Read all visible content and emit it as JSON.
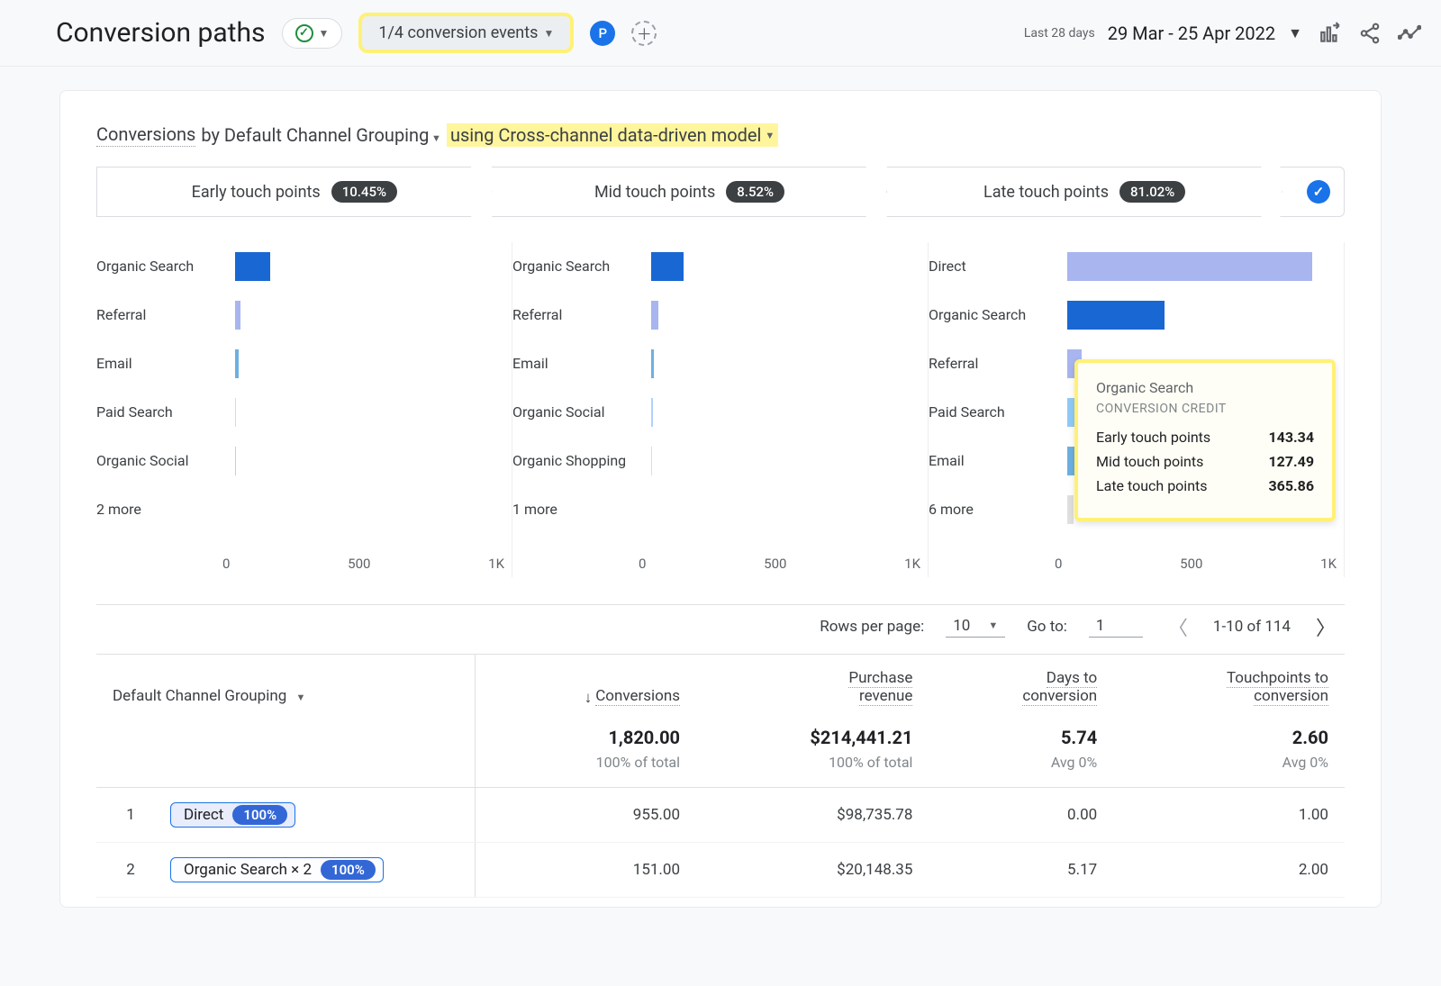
{
  "header": {
    "title": "Conversion paths",
    "events_selector": "1/4 conversion events",
    "p_label": "P",
    "date_label": "Last 28 days",
    "date_range": "29 Mar - 25 Apr 2022"
  },
  "card": {
    "title_a": "Conversions",
    "title_b": "by Default Channel Grouping",
    "title_c": "using Cross-channel data-driven model"
  },
  "funnel": {
    "steps": [
      {
        "label": "Early touch points",
        "pct": "10.45%"
      },
      {
        "label": "Mid touch points",
        "pct": "8.52%"
      },
      {
        "label": "Late touch points",
        "pct": "81.02%"
      }
    ]
  },
  "charts": {
    "axis_max": 1000,
    "ticks": [
      "0",
      "500",
      "1K"
    ],
    "cols": [
      {
        "bars": [
          {
            "label": "Organic Search",
            "value": 130,
            "color": "#1967d2"
          },
          {
            "label": "Referral",
            "value": 20,
            "color": "#a8b5ef"
          },
          {
            "label": "Email",
            "value": 12,
            "color": "#6db0e1"
          },
          {
            "label": "Paid Search",
            "value": 4,
            "color": "#cfd8ff"
          },
          {
            "label": "Organic Social",
            "value": 4,
            "color": "#b3d1ff"
          },
          {
            "label": "2 more",
            "value": 0,
            "color": "#e0e0e0"
          }
        ]
      },
      {
        "bars": [
          {
            "label": "Organic Search",
            "value": 120,
            "color": "#1967d2"
          },
          {
            "label": "Referral",
            "value": 28,
            "color": "#a8b5ef"
          },
          {
            "label": "Email",
            "value": 10,
            "color": "#6db0e1"
          },
          {
            "label": "Organic Social",
            "value": 6,
            "color": "#b3d1ff"
          },
          {
            "label": "Organic Shopping",
            "value": 4,
            "color": "#c4e3ff"
          },
          {
            "label": "1 more",
            "value": 0,
            "color": "#e0e0e0"
          }
        ]
      },
      {
        "bars": [
          {
            "label": "Direct",
            "value": 910,
            "color": "#a8b5ef"
          },
          {
            "label": "Organic Search",
            "value": 360,
            "color": "#1967d2"
          },
          {
            "label": "Referral",
            "value": 55,
            "color": "#a8b5ef"
          },
          {
            "label": "Paid Search",
            "value": 35,
            "color": "#90caf9"
          },
          {
            "label": "Email",
            "value": 30,
            "color": "#6db0e1"
          },
          {
            "label": "6 more",
            "value": 22,
            "color": "#e0e0e0"
          }
        ]
      }
    ]
  },
  "tooltip": {
    "title": "Organic Search",
    "subtitle": "CONVERSION CREDIT",
    "rows": [
      {
        "k": "Early touch points",
        "v": "143.34"
      },
      {
        "k": "Mid touch points",
        "v": "127.49"
      },
      {
        "k": "Late touch points",
        "v": "365.86"
      }
    ]
  },
  "pager": {
    "rows_label": "Rows per page:",
    "rows_value": "10",
    "goto_label": "Go to:",
    "goto_value": "1",
    "range": "1-10 of 114"
  },
  "table": {
    "col0": "Default Channel Grouping",
    "cols": [
      "Conversions",
      "Purchase revenue",
      "Days to conversion",
      "Touchpoints to conversion"
    ],
    "summary": [
      {
        "big": "1,820.00",
        "sub": "100% of total"
      },
      {
        "big": "$214,441.21",
        "sub": "100% of total"
      },
      {
        "big": "5.74",
        "sub": "Avg 0%"
      },
      {
        "big": "2.60",
        "sub": "Avg 0%"
      }
    ],
    "rows": [
      {
        "n": "1",
        "chip": "Direct",
        "chip_pct": "100%",
        "chip_light": false,
        "cells": [
          "955.00",
          "$98,735.78",
          "0.00",
          "1.00"
        ]
      },
      {
        "n": "2",
        "chip": "Organic Search × 2",
        "chip_pct": "100%",
        "chip_light": true,
        "cells": [
          "151.00",
          "$20,148.35",
          "5.17",
          "2.00"
        ]
      }
    ]
  }
}
